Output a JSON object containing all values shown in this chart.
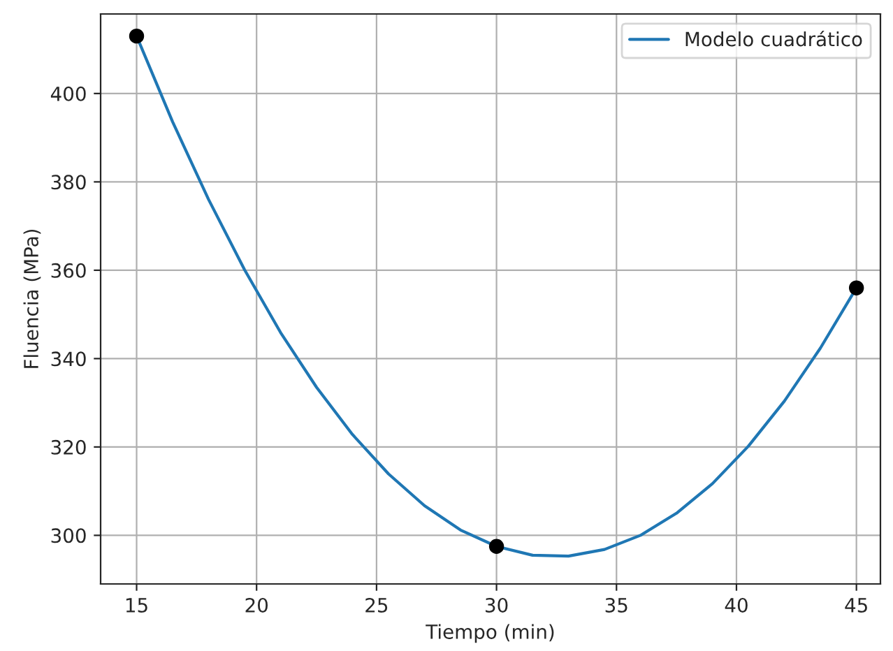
{
  "chart_data": {
    "type": "line",
    "xlabel": "Tiempo (min)",
    "ylabel": "Fluencia (MPa)",
    "series": [
      {
        "type": "scatter",
        "color": "#000000",
        "marker": "circle",
        "x": [
          15,
          30,
          45
        ],
        "values": [
          413,
          297.5,
          356
        ]
      },
      {
        "name": "Modelo cuadrático",
        "color": "#1f77b4",
        "marker": "none",
        "line_style": "solid",
        "x": [
          15,
          16.5,
          18,
          19.5,
          21,
          22.5,
          24,
          25.5,
          27,
          28.5,
          30,
          31.5,
          33,
          34.5,
          36,
          37.5,
          39,
          40.5,
          42,
          43.5,
          45
        ],
        "values": [
          413,
          393.6,
          376,
          360.1,
          345.9,
          333.5,
          322.8,
          313.9,
          306.7,
          301.2,
          297.5,
          295.5,
          295.3,
          296.8,
          300,
          305,
          311.7,
          320.2,
          330.4,
          342.4,
          356
        ]
      }
    ],
    "xlim": [
      13.5,
      46
    ],
    "ylim": [
      289,
      418
    ],
    "xticks": [
      15,
      20,
      25,
      30,
      35,
      40,
      45
    ],
    "yticks": [
      300,
      320,
      340,
      360,
      380,
      400
    ],
    "grid": true,
    "legend": "top right"
  }
}
